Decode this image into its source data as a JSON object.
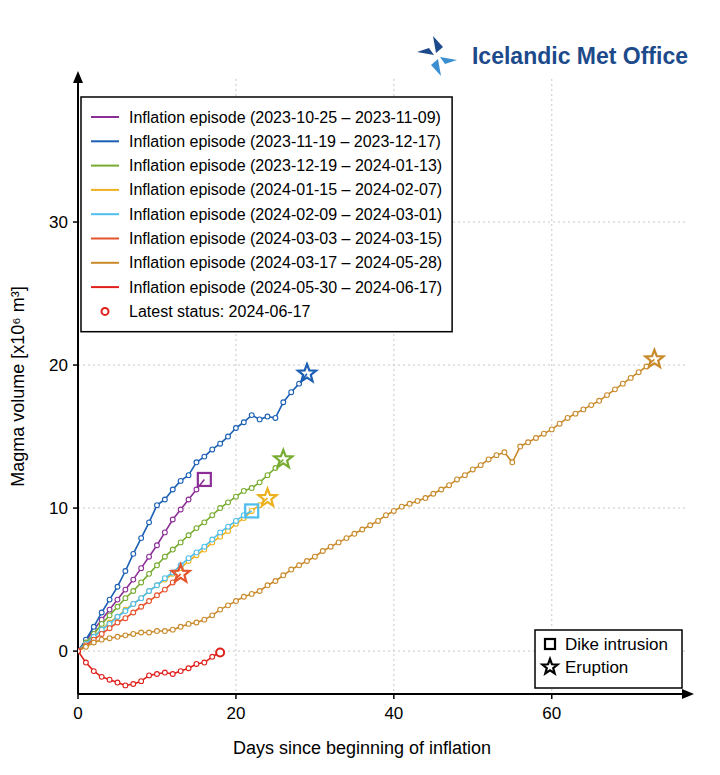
{
  "chart_data": {
    "type": "line",
    "logo_text": "Icelandic Met Office",
    "x_label": "Days since beginning of inflation",
    "y_label": "Magma volume [x10⁶ m³]",
    "xlim": [
      0,
      77
    ],
    "ylim": [
      -3,
      40
    ],
    "xticks": [
      0,
      20,
      40,
      60
    ],
    "yticks": [
      0,
      10,
      20,
      30
    ],
    "grid": true,
    "legend": "upper left",
    "marker": "circle",
    "series": [
      {
        "name": "Inflation episode (2023-10-25 – 2023-11-09)",
        "color": "#8b2f97",
        "end_marker": "square",
        "x": [
          0,
          1,
          2,
          3,
          4,
          5,
          6,
          7,
          8,
          9,
          10,
          11,
          12,
          13,
          14,
          15,
          16
        ],
        "values": [
          0,
          0.7,
          1.5,
          2.2,
          2.9,
          3.6,
          4.3,
          5.0,
          5.8,
          6.6,
          7.4,
          8.3,
          9.2,
          9.9,
          10.6,
          11.3,
          12.0
        ]
      },
      {
        "name": "Inflation episode (2023-11-19 – 2023-12-17)",
        "color": "#1a5fb4",
        "end_marker": "star",
        "x": [
          0,
          1,
          2,
          3,
          4,
          5,
          6,
          7,
          8,
          9,
          10,
          11,
          12,
          13,
          14,
          15,
          16,
          17,
          18,
          19,
          20,
          21,
          22,
          23,
          24,
          25,
          26,
          27,
          28,
          29
        ],
        "values": [
          0,
          0.8,
          1.7,
          2.7,
          3.6,
          4.5,
          5.6,
          6.8,
          7.9,
          9.0,
          10.2,
          10.6,
          11.3,
          11.9,
          12.3,
          13.2,
          13.6,
          14.1,
          14.5,
          15.0,
          15.6,
          16.0,
          16.5,
          16.2,
          16.4,
          16.3,
          17.4,
          18.1,
          18.7,
          19.4
        ]
      },
      {
        "name": "Inflation episode (2023-12-19 – 2024-01-13)",
        "color": "#77ac30",
        "end_marker": "star",
        "x": [
          0,
          1,
          2,
          3,
          4,
          5,
          6,
          7,
          8,
          9,
          10,
          11,
          12,
          13,
          14,
          15,
          16,
          17,
          18,
          19,
          20,
          21,
          22,
          23,
          24,
          25,
          26
        ],
        "values": [
          0,
          0.6,
          1.2,
          1.9,
          2.5,
          3.1,
          3.7,
          4.2,
          4.8,
          5.4,
          6.0,
          6.6,
          7.1,
          7.6,
          8.1,
          8.6,
          9.0,
          9.5,
          10.0,
          10.4,
          10.8,
          11.2,
          11.4,
          11.8,
          12.3,
          12.8,
          13.4
        ]
      },
      {
        "name": "Inflation episode (2024-01-15 – 2024-02-07)",
        "color": "#edb120",
        "end_marker": "star",
        "x": [
          0,
          1,
          2,
          3,
          4,
          5,
          6,
          7,
          8,
          9,
          10,
          11,
          12,
          13,
          14,
          15,
          16,
          17,
          18,
          19,
          20,
          21,
          22,
          23,
          24
        ],
        "values": [
          0,
          0.5,
          1.0,
          1.5,
          2.0,
          2.4,
          2.9,
          3.3,
          3.7,
          4.2,
          4.6,
          5.0,
          5.4,
          5.8,
          6.3,
          6.7,
          7.1,
          7.6,
          8.0,
          8.4,
          8.9,
          9.3,
          9.8,
          10.2,
          10.7
        ]
      },
      {
        "name": "Inflation episode (2024-02-09 – 2024-03-01)",
        "color": "#4dbeee",
        "end_marker": "square",
        "x": [
          0,
          1,
          2,
          3,
          4,
          5,
          6,
          7,
          8,
          9,
          10,
          11,
          12,
          13,
          14,
          15,
          16,
          17,
          18,
          19,
          20,
          21,
          22
        ],
        "values": [
          0,
          0.5,
          1.0,
          1.5,
          1.9,
          2.4,
          2.8,
          3.3,
          3.7,
          4.2,
          4.6,
          5.1,
          5.5,
          6.0,
          6.5,
          6.9,
          7.3,
          7.8,
          8.3,
          8.7,
          9.1,
          9.5,
          9.8
        ]
      },
      {
        "name": "Inflation episode (2024-03-03 – 2024-03-15)",
        "color": "#e5532d",
        "end_marker": "star",
        "x": [
          0,
          1,
          2,
          3,
          4,
          5,
          6,
          7,
          8,
          9,
          10,
          11,
          12,
          13
        ],
        "values": [
          0,
          0.4,
          0.8,
          1.2,
          1.6,
          2.0,
          2.3,
          2.7,
          3.1,
          3.5,
          3.9,
          4.3,
          4.8,
          5.4
        ]
      },
      {
        "name": "Inflation episode (2024-03-17 – 2024-05-28)",
        "color": "#c98a2b",
        "end_marker": "star",
        "x": [
          0,
          1,
          2,
          3,
          4,
          5,
          6,
          7,
          8,
          9,
          10,
          11,
          12,
          13,
          14,
          15,
          16,
          17,
          18,
          19,
          20,
          21,
          22,
          23,
          24,
          25,
          26,
          27,
          28,
          29,
          30,
          31,
          32,
          33,
          34,
          35,
          36,
          37,
          38,
          39,
          40,
          41,
          42,
          43,
          44,
          45,
          46,
          47,
          48,
          49,
          50,
          51,
          52,
          53,
          54,
          55,
          56,
          57,
          58,
          59,
          60,
          61,
          62,
          63,
          64,
          65,
          66,
          67,
          68,
          69,
          70,
          71,
          72,
          73
        ],
        "values": [
          0,
          0.3,
          0.6,
          0.8,
          0.9,
          1.0,
          1.1,
          1.2,
          1.3,
          1.3,
          1.4,
          1.4,
          1.5,
          1.7,
          1.9,
          2.0,
          2.2,
          2.5,
          2.9,
          3.2,
          3.5,
          3.8,
          4.0,
          4.2,
          4.6,
          4.9,
          5.3,
          5.7,
          6.0,
          6.3,
          6.6,
          7.0,
          7.3,
          7.6,
          7.9,
          8.2,
          8.5,
          8.8,
          9.1,
          9.5,
          9.8,
          10.1,
          10.3,
          10.5,
          10.7,
          11.0,
          11.3,
          11.6,
          12.0,
          12.3,
          12.7,
          13.0,
          13.4,
          13.7,
          13.9,
          13.2,
          14.3,
          14.6,
          14.9,
          15.2,
          15.5,
          15.9,
          16.3,
          16.6,
          16.9,
          17.2,
          17.5,
          17.9,
          18.3,
          18.7,
          19.1,
          19.5,
          19.9,
          20.4
        ]
      },
      {
        "name": "Inflation episode (2024-05-30 – 2024-06-17)",
        "color": "#e0201b",
        "end_marker": "circle",
        "x": [
          0,
          1,
          2,
          3,
          4,
          5,
          6,
          7,
          8,
          9,
          10,
          11,
          12,
          13,
          14,
          15,
          16,
          17,
          18
        ],
        "values": [
          0,
          -0.8,
          -1.4,
          -1.8,
          -2.0,
          -2.2,
          -2.4,
          -2.3,
          -2.1,
          -1.7,
          -1.6,
          -1.5,
          -1.6,
          -1.4,
          -1.2,
          -0.9,
          -0.8,
          -0.4,
          -0.1
        ]
      }
    ],
    "status": {
      "name": "Latest status: 2024-06-17",
      "color": "#e0201b",
      "marker": "circle"
    },
    "events": [
      {
        "name": "Dike intrusion",
        "marker": "square"
      },
      {
        "name": "Eruption",
        "marker": "star"
      }
    ]
  }
}
